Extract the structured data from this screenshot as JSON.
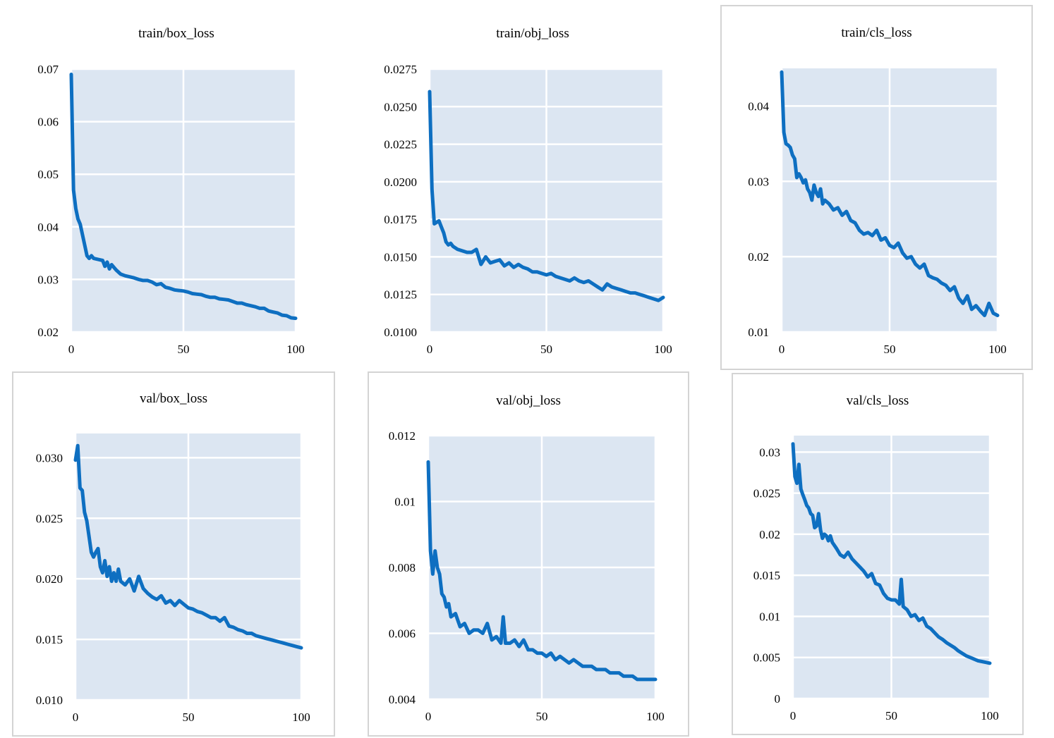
{
  "chart_data": [
    {
      "type": "line",
      "title": "train/box_loss",
      "x_ticks": [
        "0",
        "50",
        "100"
      ],
      "y_ticks": [
        "0.07",
        "0.06",
        "0.05",
        "0.04",
        "0.03",
        "0.02"
      ],
      "xlim": [
        0,
        100
      ],
      "ylim": [
        0.02,
        0.07
      ],
      "grid": true,
      "legend": "none",
      "line_color": "#0e6fc1",
      "plot_bg": "#dce6f2",
      "series": [
        {
          "x": [
            0,
            1,
            2,
            3,
            4,
            5,
            6,
            7,
            8,
            9,
            10,
            12,
            14,
            15,
            16,
            17,
            18,
            20,
            22,
            24,
            26,
            28,
            30,
            32,
            34,
            36,
            38,
            40,
            42,
            44,
            46,
            48,
            50,
            52,
            54,
            56,
            58,
            60,
            62,
            64,
            66,
            68,
            70,
            72,
            74,
            76,
            78,
            80,
            82,
            84,
            86,
            88,
            90,
            92,
            94,
            96,
            98,
            100
          ],
          "y": [
            0.069,
            0.047,
            0.0435,
            0.0415,
            0.0405,
            0.0385,
            0.0365,
            0.0345,
            0.034,
            0.0345,
            0.034,
            0.0338,
            0.0336,
            0.0325,
            0.0333,
            0.032,
            0.0328,
            0.0318,
            0.031,
            0.0307,
            0.0305,
            0.0303,
            0.03,
            0.0298,
            0.0298,
            0.0295,
            0.029,
            0.0292,
            0.0285,
            0.0283,
            0.028,
            0.0279,
            0.0278,
            0.0276,
            0.0273,
            0.0272,
            0.0271,
            0.0268,
            0.0266,
            0.0266,
            0.0263,
            0.0262,
            0.0261,
            0.0258,
            0.0255,
            0.0255,
            0.0252,
            0.025,
            0.0248,
            0.0245,
            0.0245,
            0.024,
            0.0238,
            0.0236,
            0.0232,
            0.0231,
            0.0227,
            0.0226
          ]
        }
      ]
    },
    {
      "type": "line",
      "title": "train/obj_loss",
      "x_ticks": [
        "0",
        "50",
        "100"
      ],
      "y_ticks": [
        "0.0275",
        "0.0250",
        "0.0225",
        "0.0200",
        "0.0175",
        "0.0150",
        "0.0125",
        "0.0100"
      ],
      "xlim": [
        0,
        100
      ],
      "ylim": [
        0.01,
        0.0275
      ],
      "grid": true,
      "legend": "none",
      "line_color": "#0e6fc1",
      "plot_bg": "#dce6f2",
      "series": [
        {
          "x": [
            0,
            1,
            2,
            3,
            4,
            5,
            6,
            7,
            8,
            9,
            10,
            12,
            14,
            16,
            18,
            20,
            22,
            24,
            26,
            28,
            30,
            32,
            34,
            36,
            38,
            40,
            42,
            44,
            46,
            48,
            50,
            52,
            54,
            56,
            58,
            60,
            62,
            64,
            66,
            68,
            70,
            72,
            74,
            76,
            78,
            80,
            82,
            84,
            86,
            88,
            90,
            92,
            94,
            96,
            98,
            100
          ],
          "y": [
            0.026,
            0.0195,
            0.0172,
            0.0173,
            0.0174,
            0.017,
            0.0166,
            0.016,
            0.0158,
            0.0159,
            0.0157,
            0.0155,
            0.0154,
            0.0153,
            0.0153,
            0.0155,
            0.0145,
            0.015,
            0.0146,
            0.0147,
            0.0148,
            0.0144,
            0.0146,
            0.0143,
            0.0145,
            0.0143,
            0.0142,
            0.014,
            0.014,
            0.0139,
            0.0138,
            0.0139,
            0.0137,
            0.0136,
            0.0135,
            0.0134,
            0.0136,
            0.0134,
            0.0133,
            0.0134,
            0.0132,
            0.013,
            0.0128,
            0.0132,
            0.013,
            0.0129,
            0.0128,
            0.0127,
            0.0126,
            0.0126,
            0.0125,
            0.0124,
            0.0123,
            0.0122,
            0.0121,
            0.0123
          ]
        }
      ]
    },
    {
      "type": "line",
      "title": "train/cls_loss",
      "x_ticks": [
        "0",
        "50",
        "100"
      ],
      "y_ticks": [
        "0.04",
        "0.03",
        "0.02",
        "0.01"
      ],
      "xlim": [
        0,
        100
      ],
      "ylim": [
        0.01,
        0.045
      ],
      "grid": true,
      "legend": "none",
      "line_color": "#0e6fc1",
      "plot_bg": "#dce6f2",
      "series": [
        {
          "x": [
            0,
            1,
            2,
            3,
            4,
            5,
            6,
            7,
            8,
            9,
            10,
            11,
            12,
            13,
            14,
            15,
            16,
            17,
            18,
            19,
            20,
            22,
            24,
            26,
            28,
            30,
            32,
            34,
            36,
            38,
            40,
            42,
            44,
            46,
            48,
            50,
            52,
            54,
            56,
            58,
            60,
            62,
            64,
            66,
            68,
            70,
            72,
            74,
            76,
            78,
            80,
            82,
            84,
            86,
            88,
            90,
            92,
            94,
            96,
            98,
            100
          ],
          "y": [
            0.0445,
            0.0365,
            0.035,
            0.0348,
            0.0345,
            0.0335,
            0.033,
            0.0305,
            0.031,
            0.0305,
            0.0298,
            0.0302,
            0.029,
            0.0285,
            0.0275,
            0.0295,
            0.0285,
            0.028,
            0.029,
            0.027,
            0.0275,
            0.027,
            0.0262,
            0.0265,
            0.0255,
            0.026,
            0.0248,
            0.0245,
            0.0235,
            0.023,
            0.0232,
            0.0228,
            0.0235,
            0.0222,
            0.0225,
            0.0215,
            0.0212,
            0.0218,
            0.0205,
            0.0198,
            0.02,
            0.019,
            0.0185,
            0.019,
            0.0175,
            0.0172,
            0.017,
            0.0165,
            0.0162,
            0.0155,
            0.016,
            0.0145,
            0.0138,
            0.0148,
            0.013,
            0.0135,
            0.0128,
            0.0122,
            0.0138,
            0.0125,
            0.0122
          ]
        }
      ]
    },
    {
      "type": "line",
      "title": "val/box_loss",
      "x_ticks": [
        "0",
        "50",
        "100"
      ],
      "y_ticks": [
        "0.030",
        "0.025",
        "0.020",
        "0.015",
        "0.010"
      ],
      "xlim": [
        0,
        100
      ],
      "ylim": [
        0.01,
        0.032
      ],
      "grid": true,
      "legend": "none",
      "line_color": "#0e6fc1",
      "plot_bg": "#dce6f2",
      "series": [
        {
          "x": [
            0,
            1,
            2,
            3,
            4,
            5,
            6,
            7,
            8,
            9,
            10,
            11,
            12,
            13,
            14,
            15,
            16,
            17,
            18,
            19,
            20,
            22,
            24,
            26,
            28,
            30,
            32,
            34,
            36,
            38,
            40,
            42,
            44,
            46,
            48,
            50,
            52,
            54,
            56,
            58,
            60,
            62,
            64,
            66,
            68,
            70,
            72,
            74,
            76,
            78,
            80,
            82,
            84,
            86,
            88,
            90,
            92,
            94,
            96,
            98,
            100
          ],
          "y": [
            0.0298,
            0.031,
            0.0275,
            0.0273,
            0.0255,
            0.0248,
            0.0235,
            0.0222,
            0.0218,
            0.0222,
            0.0225,
            0.021,
            0.0205,
            0.0215,
            0.0202,
            0.021,
            0.0198,
            0.0205,
            0.0198,
            0.0208,
            0.0198,
            0.0195,
            0.02,
            0.019,
            0.0202,
            0.0192,
            0.0188,
            0.0185,
            0.0183,
            0.0186,
            0.018,
            0.0182,
            0.0178,
            0.0182,
            0.0179,
            0.0176,
            0.0175,
            0.0173,
            0.0172,
            0.017,
            0.0168,
            0.0168,
            0.0165,
            0.0168,
            0.0161,
            0.016,
            0.0158,
            0.0157,
            0.0155,
            0.0155,
            0.0153,
            0.0152,
            0.0151,
            0.015,
            0.0149,
            0.0148,
            0.0147,
            0.0146,
            0.0145,
            0.0144,
            0.0143
          ]
        }
      ]
    },
    {
      "type": "line",
      "title": "val/obj_loss",
      "x_ticks": [
        "0",
        "50",
        "100"
      ],
      "y_ticks": [
        "0.012",
        "0.01",
        "0.008",
        "0.006",
        "0.004"
      ],
      "xlim": [
        0,
        100
      ],
      "ylim": [
        0.004,
        0.012
      ],
      "grid": true,
      "legend": "none",
      "line_color": "#0e6fc1",
      "plot_bg": "#dce6f2",
      "series": [
        {
          "x": [
            0,
            1,
            2,
            3,
            4,
            5,
            6,
            7,
            8,
            9,
            10,
            12,
            14,
            16,
            18,
            20,
            22,
            24,
            26,
            28,
            30,
            32,
            33,
            34,
            36,
            38,
            40,
            42,
            44,
            46,
            48,
            50,
            52,
            54,
            56,
            58,
            60,
            62,
            64,
            66,
            68,
            70,
            72,
            74,
            76,
            78,
            80,
            82,
            84,
            86,
            88,
            90,
            92,
            94,
            96,
            98,
            100
          ],
          "y": [
            0.0112,
            0.0085,
            0.0078,
            0.0085,
            0.008,
            0.0078,
            0.0072,
            0.0071,
            0.0068,
            0.0069,
            0.0065,
            0.0066,
            0.0062,
            0.0063,
            0.006,
            0.0061,
            0.0061,
            0.006,
            0.0063,
            0.0058,
            0.0059,
            0.0057,
            0.0065,
            0.0057,
            0.0057,
            0.0058,
            0.0056,
            0.0058,
            0.0055,
            0.0055,
            0.0054,
            0.0054,
            0.0053,
            0.0054,
            0.0052,
            0.0053,
            0.0052,
            0.0051,
            0.0052,
            0.0051,
            0.005,
            0.005,
            0.005,
            0.0049,
            0.0049,
            0.0049,
            0.0048,
            0.0048,
            0.0048,
            0.0047,
            0.0047,
            0.0047,
            0.0046,
            0.0046,
            0.0046,
            0.0046,
            0.0046
          ]
        }
      ]
    },
    {
      "type": "line",
      "title": "val/cls_loss",
      "x_ticks": [
        "0",
        "50",
        "100"
      ],
      "y_ticks": [
        "0.03",
        "0.025",
        "0.02",
        "0.015",
        "0.01",
        "0.005",
        "0"
      ],
      "xlim": [
        0,
        100
      ],
      "ylim": [
        0,
        0.032
      ],
      "grid": true,
      "legend": "none",
      "line_color": "#0e6fc1",
      "plot_bg": "#dce6f2",
      "series": [
        {
          "x": [
            0,
            1,
            2,
            3,
            4,
            5,
            6,
            7,
            8,
            9,
            10,
            11,
            12,
            13,
            14,
            15,
            16,
            17,
            18,
            19,
            20,
            22,
            24,
            26,
            28,
            30,
            32,
            34,
            36,
            38,
            40,
            42,
            44,
            46,
            48,
            50,
            52,
            54,
            55,
            56,
            58,
            60,
            62,
            64,
            66,
            68,
            70,
            72,
            74,
            76,
            78,
            80,
            82,
            84,
            86,
            88,
            90,
            92,
            94,
            96,
            98,
            100
          ],
          "y": [
            0.031,
            0.027,
            0.0262,
            0.0285,
            0.0255,
            0.0248,
            0.0242,
            0.0235,
            0.0232,
            0.0225,
            0.0223,
            0.0208,
            0.021,
            0.0225,
            0.0205,
            0.0195,
            0.02,
            0.0198,
            0.0192,
            0.0198,
            0.019,
            0.0183,
            0.0175,
            0.0172,
            0.0178,
            0.017,
            0.0165,
            0.016,
            0.0155,
            0.0148,
            0.0152,
            0.014,
            0.0138,
            0.0128,
            0.0122,
            0.012,
            0.012,
            0.0115,
            0.0145,
            0.0112,
            0.0108,
            0.01,
            0.0102,
            0.0095,
            0.0098,
            0.0088,
            0.0085,
            0.008,
            0.0075,
            0.0072,
            0.0068,
            0.0065,
            0.0062,
            0.0058,
            0.0055,
            0.0052,
            0.005,
            0.0048,
            0.0046,
            0.0045,
            0.0044,
            0.0043
          ]
        }
      ]
    }
  ]
}
